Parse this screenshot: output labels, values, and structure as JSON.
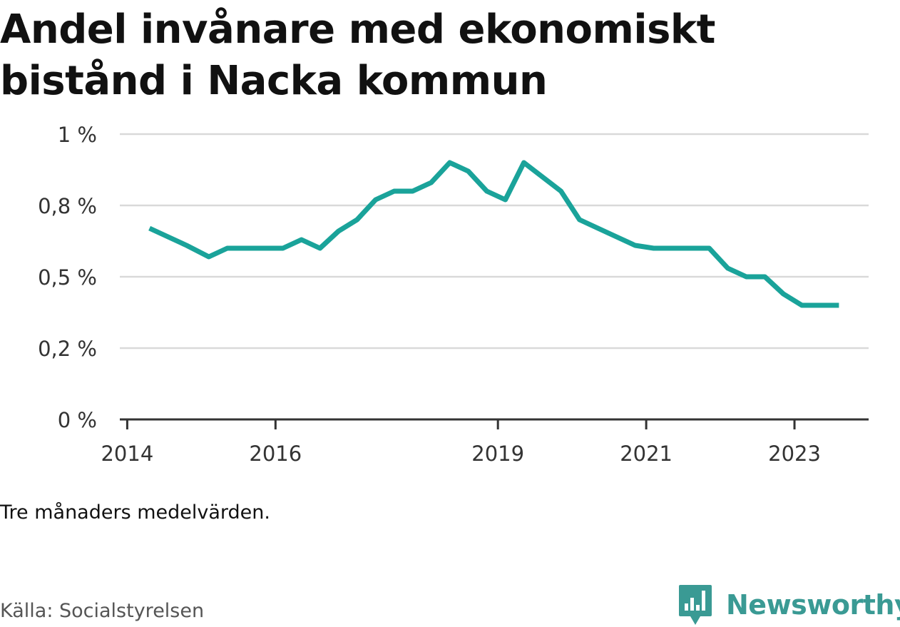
{
  "title": "Andel invånare med ekonomiskt bistånd i Nacka kommun",
  "note": "Tre månaders medelvärden.",
  "source": "Källa: Socialstyrelsen",
  "brand": {
    "name": "Newsworthy",
    "color": "#3a9a94"
  },
  "chart_data": {
    "type": "line",
    "title": "Andel invånare med ekonomiskt bistånd i Nacka kommun",
    "xlabel": "",
    "ylabel": "",
    "ylim": [
      0,
      1
    ],
    "yticks": [
      {
        "value": 0,
        "label": "0 %"
      },
      {
        "value": 0.25,
        "label": "0,2 %"
      },
      {
        "value": 0.5,
        "label": "0,5 %"
      },
      {
        "value": 0.75,
        "label": "0,8 %"
      },
      {
        "value": 1,
        "label": "1 %"
      }
    ],
    "xlim": [
      2013.9,
      2024.0
    ],
    "xticks": [
      {
        "value": 2014,
        "label": "2014"
      },
      {
        "value": 2016,
        "label": "2016"
      },
      {
        "value": 2019,
        "label": "2019"
      },
      {
        "value": 2021,
        "label": "2021"
      },
      {
        "value": 2023,
        "label": "2023"
      }
    ],
    "grid": true,
    "color": "#1aa39a",
    "series": [
      {
        "x": [
          2014.3,
          2014.55,
          2014.8,
          2015.1,
          2015.35,
          2015.6,
          2015.85,
          2016.1,
          2016.35,
          2016.6,
          2016.85,
          2017.1,
          2017.35,
          2017.6,
          2017.85,
          2018.1,
          2018.35,
          2018.6,
          2018.85,
          2019.1,
          2019.35,
          2019.6,
          2019.85,
          2020.1,
          2020.35,
          2020.6,
          2020.85,
          2021.1,
          2021.35,
          2021.6,
          2021.85,
          2022.1,
          2022.35,
          2022.6,
          2022.85,
          2023.1,
          2023.35,
          2023.6
        ],
        "values": [
          0.67,
          0.64,
          0.61,
          0.57,
          0.6,
          0.6,
          0.6,
          0.6,
          0.63,
          0.6,
          0.66,
          0.7,
          0.77,
          0.8,
          0.8,
          0.83,
          0.9,
          0.87,
          0.8,
          0.77,
          0.9,
          0.85,
          0.8,
          0.7,
          0.67,
          0.64,
          0.61,
          0.6,
          0.6,
          0.6,
          0.6,
          0.53,
          0.5,
          0.5,
          0.44,
          0.4,
          0.4,
          0.4
        ]
      }
    ]
  }
}
